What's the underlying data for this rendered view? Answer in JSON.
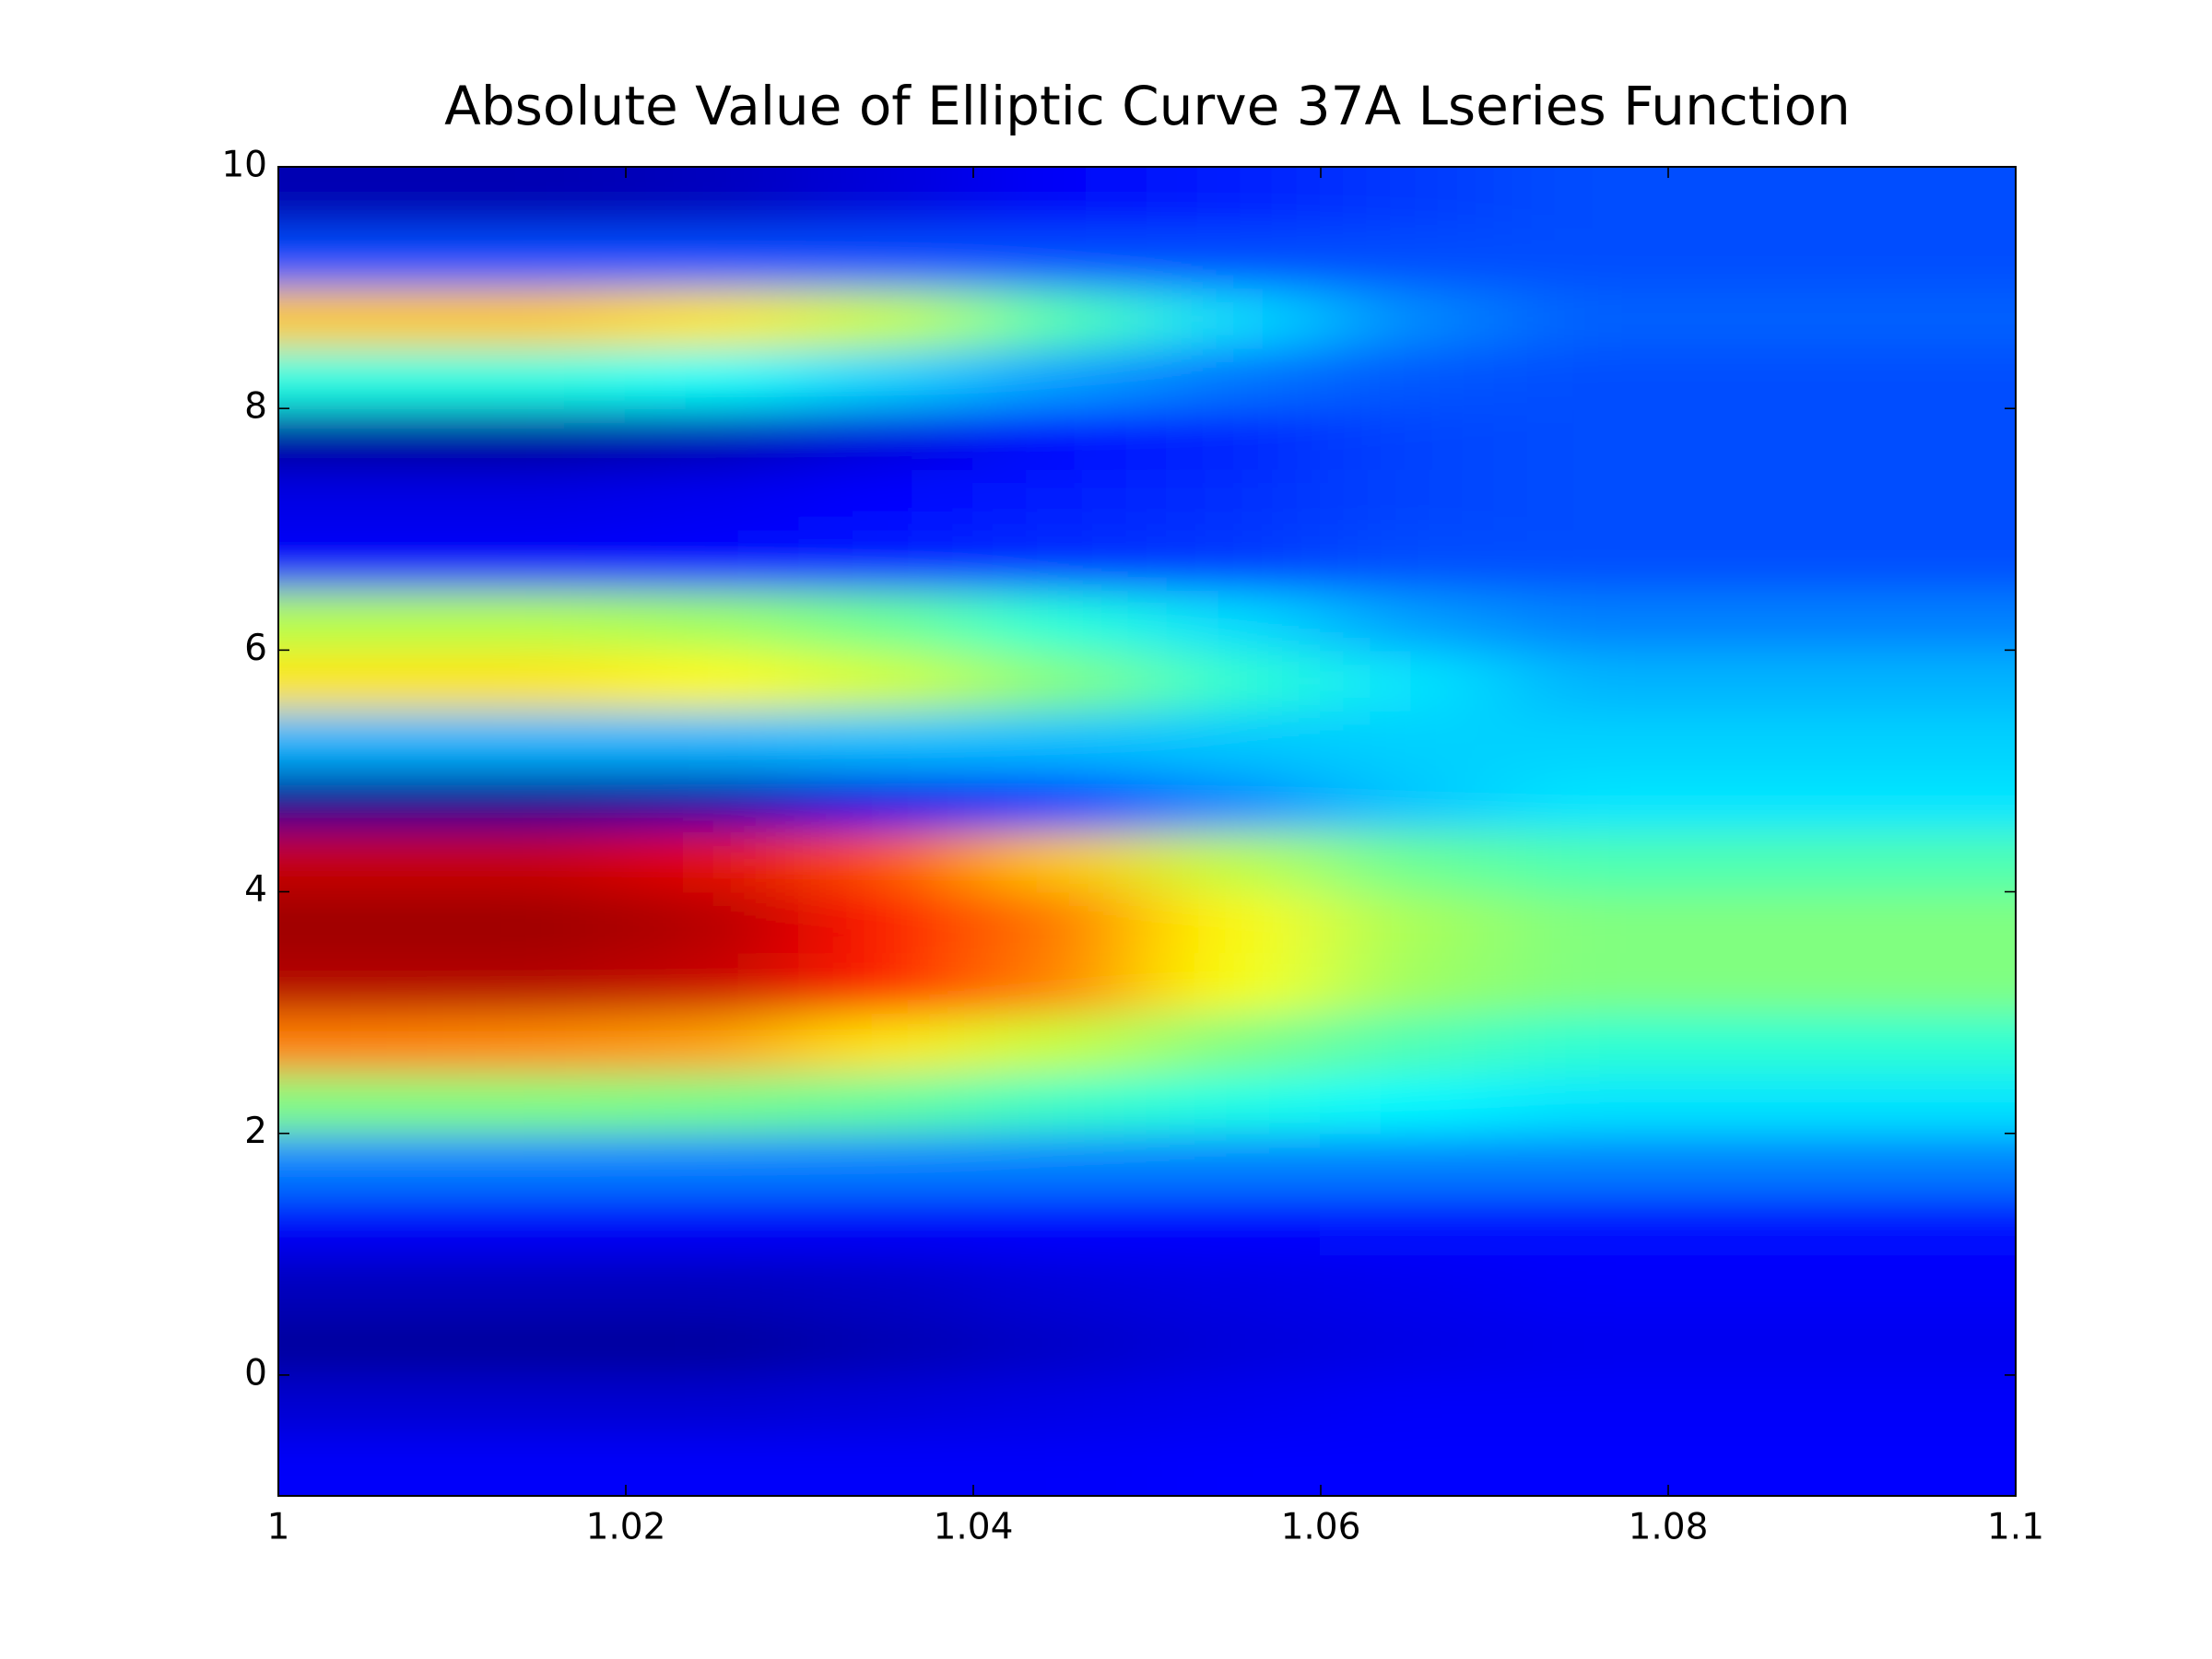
{
  "chart_data": {
    "type": "heatmap",
    "title": "Absolute Value of Elliptic Curve 37A Lseries Function",
    "colormap": "jet",
    "x": [
      1.005,
      1.015,
      1.025,
      1.035,
      1.045,
      1.055,
      1.065,
      1.075,
      1.085,
      1.095
    ],
    "y": [
      -0.75,
      -0.25,
      0.25,
      0.75,
      1.25,
      1.75,
      2.25,
      2.75,
      3.25,
      3.75,
      4.25,
      4.75,
      5.25,
      5.75,
      6.25,
      6.75,
      7.25,
      7.75,
      8.25,
      8.75,
      9.25,
      9.75
    ],
    "z": [
      [
        0.12,
        0.12,
        0.12,
        0.12,
        0.12,
        0.13,
        0.13,
        0.13,
        0.13,
        0.13
      ],
      [
        0.08,
        0.08,
        0.08,
        0.09,
        0.1,
        0.11,
        0.12,
        0.12,
        0.12,
        0.12
      ],
      [
        0.03,
        0.03,
        0.03,
        0.05,
        0.07,
        0.09,
        0.1,
        0.11,
        0.11,
        0.11
      ],
      [
        0.06,
        0.06,
        0.06,
        0.07,
        0.09,
        0.1,
        0.11,
        0.12,
        0.12,
        0.12
      ],
      [
        0.12,
        0.12,
        0.12,
        0.12,
        0.13,
        0.13,
        0.14,
        0.14,
        0.14,
        0.14
      ],
      [
        0.25,
        0.25,
        0.25,
        0.25,
        0.25,
        0.25,
        0.25,
        0.25,
        0.25,
        0.25
      ],
      [
        0.5,
        0.5,
        0.49,
        0.47,
        0.43,
        0.4,
        0.37,
        0.35,
        0.35,
        0.35
      ],
      [
        0.75,
        0.74,
        0.72,
        0.65,
        0.57,
        0.5,
        0.45,
        0.42,
        0.42,
        0.42
      ],
      [
        0.95,
        0.95,
        0.93,
        0.85,
        0.75,
        0.62,
        0.53,
        0.5,
        0.5,
        0.5
      ],
      [
        0.97,
        0.97,
        0.95,
        0.86,
        0.76,
        0.63,
        0.54,
        0.5,
        0.5,
        0.5
      ],
      [
        0.93,
        0.93,
        0.9,
        0.8,
        0.68,
        0.56,
        0.48,
        0.45,
        0.45,
        0.45
      ],
      [
        0.02,
        0.02,
        0.04,
        0.1,
        0.18,
        0.26,
        0.32,
        0.35,
        0.35,
        0.35
      ],
      [
        0.3,
        0.3,
        0.3,
        0.31,
        0.31,
        0.32,
        0.33,
        0.33,
        0.33,
        0.33
      ],
      [
        0.65,
        0.65,
        0.63,
        0.58,
        0.5,
        0.42,
        0.35,
        0.3,
        0.3,
        0.3
      ],
      [
        0.55,
        0.55,
        0.53,
        0.48,
        0.41,
        0.34,
        0.28,
        0.25,
        0.25,
        0.25
      ],
      [
        0.12,
        0.12,
        0.13,
        0.15,
        0.17,
        0.18,
        0.2,
        0.2,
        0.2,
        0.2
      ],
      [
        0.1,
        0.1,
        0.11,
        0.13,
        0.15,
        0.17,
        0.19,
        0.2,
        0.2,
        0.2
      ],
      [
        0.03,
        0.03,
        0.05,
        0.09,
        0.13,
        0.16,
        0.19,
        0.2,
        0.2,
        0.2
      ],
      [
        0.4,
        0.4,
        0.38,
        0.33,
        0.28,
        0.24,
        0.21,
        0.2,
        0.2,
        0.2
      ],
      [
        0.68,
        0.68,
        0.65,
        0.57,
        0.45,
        0.34,
        0.26,
        0.22,
        0.22,
        0.22
      ],
      [
        0.2,
        0.2,
        0.2,
        0.2,
        0.2,
        0.2,
        0.2,
        0.2,
        0.2,
        0.2
      ],
      [
        0.05,
        0.05,
        0.06,
        0.09,
        0.12,
        0.15,
        0.18,
        0.2,
        0.2,
        0.2
      ]
    ],
    "xlim": [
      1,
      1.1
    ],
    "ylim": [
      -1,
      10
    ],
    "xticks": [
      1,
      1.02,
      1.04,
      1.06,
      1.08,
      1.1
    ],
    "yticks": [
      0,
      2,
      4,
      6,
      8,
      10
    ]
  }
}
